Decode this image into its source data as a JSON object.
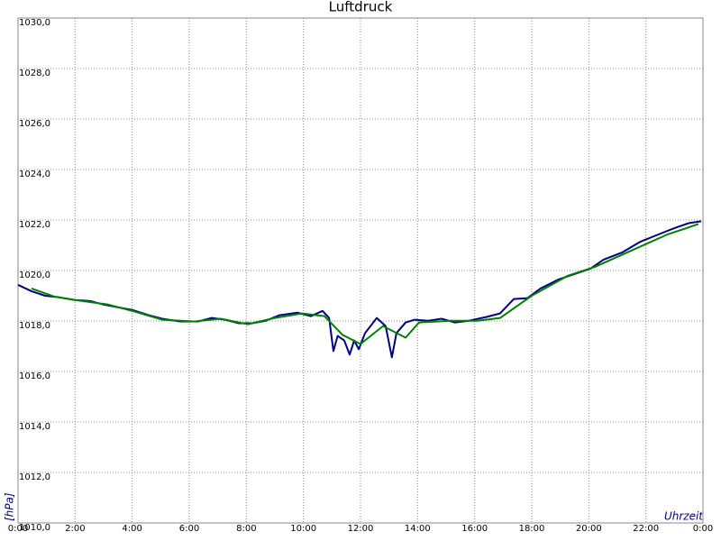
{
  "chart_data": {
    "type": "line",
    "title": "Luftdruck",
    "ylabel": "[hPa]",
    "xlabel": "Uhrzeit",
    "xlim": [
      0,
      24
    ],
    "ylim": [
      1010,
      1030
    ],
    "grid": true,
    "xticks": [
      {
        "value": 0,
        "label": "0:00"
      },
      {
        "value": 2,
        "label": "2:00"
      },
      {
        "value": 4,
        "label": "4:00"
      },
      {
        "value": 6,
        "label": "6:00"
      },
      {
        "value": 8,
        "label": "8:00"
      },
      {
        "value": 10,
        "label": "10:00"
      },
      {
        "value": 12,
        "label": "12:00"
      },
      {
        "value": 14,
        "label": "14:00"
      },
      {
        "value": 16,
        "label": "16:00"
      },
      {
        "value": 18,
        "label": "18:00"
      },
      {
        "value": 20,
        "label": "20:00"
      },
      {
        "value": 22,
        "label": "22:00"
      },
      {
        "value": 24,
        "label": "0:00"
      }
    ],
    "yticks": [
      {
        "value": 1010,
        "label": "1010,0"
      },
      {
        "value": 1012,
        "label": "1012,0"
      },
      {
        "value": 1014,
        "label": "1014,0"
      },
      {
        "value": 1016,
        "label": "1016,0"
      },
      {
        "value": 1018,
        "label": "1018,0"
      },
      {
        "value": 1020,
        "label": "1020,0"
      },
      {
        "value": 1022,
        "label": "1022,0"
      },
      {
        "value": 1024,
        "label": "1024,0"
      },
      {
        "value": 1026,
        "label": "1026,0"
      },
      {
        "value": 1028,
        "label": "1028,0"
      },
      {
        "value": 1030,
        "label": "1030,0"
      }
    ],
    "series": [
      {
        "color": "#000080",
        "x": [
          0,
          0.47,
          0.95,
          1.42,
          2,
          2.53,
          3,
          3.47,
          4,
          4.58,
          5.05,
          5.68,
          6.3,
          6.79,
          7.26,
          7.74,
          8.2,
          8.68,
          9.16,
          9.79,
          10.26,
          10.67,
          10.9,
          11.05,
          11.2,
          11.43,
          11.62,
          11.78,
          11.94,
          12.16,
          12.57,
          12.88,
          13.1,
          13.26,
          13.58,
          13.9,
          14.37,
          14.84,
          15.31,
          15.79,
          16.42,
          16.89,
          17.37,
          17.84,
          18.31,
          18.95,
          19.58,
          20.05,
          20.52,
          21.16,
          21.79,
          22.42,
          23.05,
          23.52,
          23.94
        ],
        "values": [
          1019.43,
          1019.18,
          1019.0,
          1018.94,
          1018.83,
          1018.79,
          1018.65,
          1018.55,
          1018.44,
          1018.23,
          1018.09,
          1017.98,
          1017.98,
          1018.12,
          1018.05,
          1017.91,
          1017.91,
          1018.01,
          1018.23,
          1018.33,
          1018.19,
          1018.4,
          1018.12,
          1016.81,
          1017.41,
          1017.23,
          1016.67,
          1017.23,
          1016.88,
          1017.52,
          1018.12,
          1017.8,
          1016.56,
          1017.52,
          1017.94,
          1018.05,
          1018.01,
          1018.09,
          1017.94,
          1018.01,
          1018.16,
          1018.3,
          1018.87,
          1018.9,
          1019.29,
          1019.65,
          1019.89,
          1020.07,
          1020.43,
          1020.71,
          1021.13,
          1021.42,
          1021.7,
          1021.88,
          1021.95
        ]
      },
      {
        "color": "#008000",
        "x": [
          0.47,
          1.26,
          2,
          3.16,
          4.1,
          5.05,
          6.16,
          7.1,
          8.05,
          9,
          9.95,
          10.74,
          11.37,
          12,
          12.79,
          13.58,
          14.05,
          15.16,
          16.1,
          16.89,
          18,
          19.26,
          20.21,
          21.47,
          22.74,
          23.84
        ],
        "values": [
          1019.29,
          1018.97,
          1018.83,
          1018.65,
          1018.37,
          1018.05,
          1017.98,
          1018.09,
          1017.87,
          1018.12,
          1018.3,
          1018.19,
          1017.45,
          1017.09,
          1017.8,
          1017.34,
          1017.94,
          1018.01,
          1018.01,
          1018.12,
          1019.0,
          1019.79,
          1020.14,
          1020.78,
          1021.42,
          1021.84
        ]
      }
    ]
  }
}
